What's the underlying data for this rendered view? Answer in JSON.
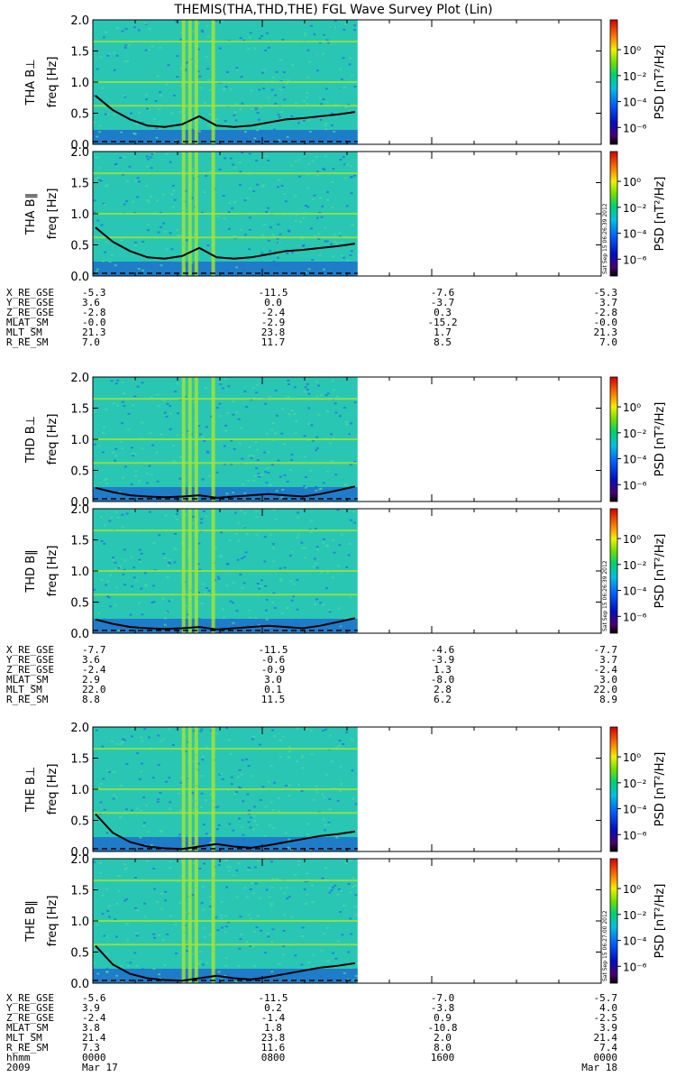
{
  "title": "THEMIS(THA,THD,THE) FGL Wave Survey Plot (Lin)",
  "colors": {
    "spec_bg": "#29c6b4",
    "spec_lo": "#1740d8",
    "spec_hi": "#a6e62a",
    "line": "#000000"
  },
  "chart_data": {
    "type": "heatmap",
    "title": "THEMIS(THA,THD,THE) FGL Wave Survey Plot (Lin)",
    "x_ticks": [
      "0000",
      "0800",
      "1600",
      "0000"
    ],
    "time_row_label": "hhmm",
    "date_row": {
      "label": "2009",
      "ticks": [
        "Mar 17",
        "",
        "",
        "Mar 18"
      ]
    },
    "data_coverage_hours": [
      0,
      12.5
    ],
    "ylim": [
      0,
      2.0
    ],
    "y_ticks": [
      "0.0",
      "0.5",
      "1.0",
      "1.5",
      "2.0"
    ],
    "ylabel_units": "freq [Hz]",
    "colorbar": {
      "label": "PSD [nT²/Hz]",
      "ticks": [
        "10⁰",
        "10⁻²",
        "10⁻⁴",
        "10⁻⁶"
      ],
      "exponents": [
        0,
        -2,
        -4,
        -6
      ]
    },
    "panels": [
      {
        "label": "THA B⊥",
        "line": [
          0.78,
          0.55,
          0.4,
          0.3,
          0.28,
          0.32,
          0.45,
          0.3,
          0.28,
          0.3,
          0.35,
          0.4,
          0.42,
          0.45,
          0.48,
          0.52
        ],
        "stamp": ""
      },
      {
        "label": "THA B‖",
        "line": [
          0.78,
          0.55,
          0.4,
          0.3,
          0.28,
          0.32,
          0.45,
          0.3,
          0.28,
          0.3,
          0.35,
          0.4,
          0.42,
          0.45,
          0.48,
          0.52
        ],
        "stamp": "Sat Sep 15 06:26:39 2012"
      },
      {
        "label": "THD B⊥",
        "line": [
          0.22,
          0.15,
          0.1,
          0.08,
          0.07,
          0.08,
          0.1,
          0.06,
          0.08,
          0.1,
          0.12,
          0.1,
          0.08,
          0.12,
          0.18,
          0.24
        ],
        "stamp": ""
      },
      {
        "label": "THD B‖",
        "line": [
          0.22,
          0.15,
          0.1,
          0.08,
          0.07,
          0.08,
          0.1,
          0.06,
          0.08,
          0.1,
          0.12,
          0.1,
          0.08,
          0.12,
          0.18,
          0.24
        ],
        "stamp": "Sat Sep 15 06:26:39 2012"
      },
      {
        "label": "THE B⊥",
        "line": [
          0.6,
          0.3,
          0.15,
          0.08,
          0.05,
          0.04,
          0.08,
          0.12,
          0.08,
          0.06,
          0.1,
          0.15,
          0.2,
          0.25,
          0.28,
          0.32
        ],
        "stamp": ""
      },
      {
        "label": "THE B‖",
        "line": [
          0.6,
          0.3,
          0.15,
          0.08,
          0.05,
          0.04,
          0.08,
          0.12,
          0.08,
          0.06,
          0.1,
          0.15,
          0.2,
          0.25,
          0.28,
          0.32
        ],
        "stamp": "Sat Sep 15 06:27:00 2012"
      }
    ],
    "ephemeris": [
      {
        "probe": "THA",
        "rows": [
          {
            "label": "X_RE_GSE",
            "values": [
              "-5.3",
              "-11.5",
              "-7.6",
              "-5.3"
            ]
          },
          {
            "label": "Y_RE_GSE",
            "values": [
              "3.6",
              "0.0",
              "-3.7",
              "3.7"
            ]
          },
          {
            "label": "Z_RE_GSE",
            "values": [
              "-2.8",
              "-2.4",
              "0.3",
              "-2.8"
            ]
          },
          {
            "label": "MLAT_SM",
            "values": [
              "-0.0",
              "-2.9",
              "-15.2",
              "-0.0"
            ]
          },
          {
            "label": "MLT_SM",
            "values": [
              "21.3",
              "23.8",
              "1.7",
              "21.3"
            ]
          },
          {
            "label": "R_RE_SM",
            "values": [
              "7.0",
              "11.7",
              "8.5",
              "7.0"
            ]
          }
        ]
      },
      {
        "probe": "THD",
        "rows": [
          {
            "label": "X_RE_GSE",
            "values": [
              "-7.7",
              "-11.5",
              "-4.6",
              "-7.7"
            ]
          },
          {
            "label": "Y_RE_GSE",
            "values": [
              "3.6",
              "-0.6",
              "-3.9",
              "3.7"
            ]
          },
          {
            "label": "Z_RE_GSE",
            "values": [
              "-2.4",
              "-0.9",
              "1.3",
              "-2.4"
            ]
          },
          {
            "label": "MLAT_SM",
            "values": [
              "2.9",
              "3.0",
              "-8.0",
              "3.0"
            ]
          },
          {
            "label": "MLT_SM",
            "values": [
              "22.0",
              "0.1",
              "2.8",
              "22.0"
            ]
          },
          {
            "label": "R_RE_SM",
            "values": [
              "8.8",
              "11.5",
              "6.2",
              "8.9"
            ]
          }
        ]
      },
      {
        "probe": "THE",
        "rows": [
          {
            "label": "X_RE_GSE",
            "values": [
              "-5.6",
              "-11.5",
              "-7.0",
              "-5.7"
            ]
          },
          {
            "label": "Y_RE_GSE",
            "values": [
              "3.9",
              "0.2",
              "-3.8",
              "4.0"
            ]
          },
          {
            "label": "Z_RE_GSE",
            "values": [
              "-2.4",
              "-1.4",
              "0.9",
              "-2.5"
            ]
          },
          {
            "label": "MLAT_SM",
            "values": [
              "3.8",
              "1.8",
              "-10.8",
              "3.9"
            ]
          },
          {
            "label": "MLT_SM",
            "values": [
              "21.4",
              "23.8",
              "2.0",
              "21.4"
            ]
          },
          {
            "label": "R_RE_SM",
            "values": [
              "7.3",
              "11.6",
              "8.0",
              "7.4"
            ]
          }
        ]
      }
    ]
  }
}
